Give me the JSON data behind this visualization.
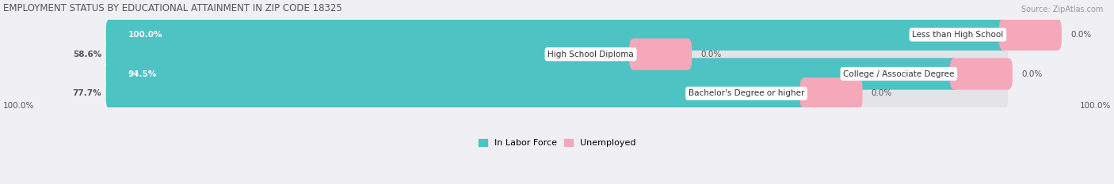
{
  "title": "EMPLOYMENT STATUS BY EDUCATIONAL ATTAINMENT IN ZIP CODE 18325",
  "source": "Source: ZipAtlas.com",
  "categories": [
    "Less than High School",
    "High School Diploma",
    "College / Associate Degree",
    "Bachelor's Degree or higher"
  ],
  "labor_force": [
    100.0,
    58.6,
    94.5,
    77.7
  ],
  "unemployed_visual": [
    6.0,
    6.0,
    6.0,
    6.0
  ],
  "right_labels": [
    "0.0%",
    "0.0%",
    "0.0%",
    "0.0%"
  ],
  "lf_labels": [
    "100.0%",
    "58.6%",
    "94.5%",
    "77.7%"
  ],
  "lf_label_inside": [
    true,
    false,
    true,
    false
  ],
  "color_labor": "#4EC3C3",
  "color_unemployed": "#F5A8BA",
  "color_bg_bar": "#E3E3E8",
  "color_title": "#555555",
  "color_source": "#999999",
  "bar_height": 0.62,
  "bar_gap": 0.38,
  "figsize": [
    14.06,
    2.33
  ],
  "dpi": 100,
  "total_width": 100,
  "left_axis_label": "100.0%",
  "right_axis_label": "100.0%",
  "legend_labor": "In Labor Force",
  "legend_unemployed": "Unemployed"
}
